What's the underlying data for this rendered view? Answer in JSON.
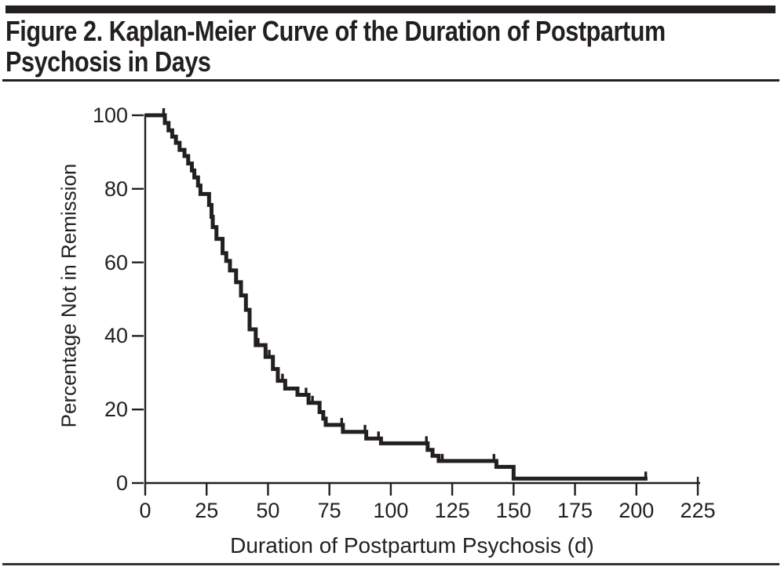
{
  "figure": {
    "title": "Figure 2. Kaplan-Meier Curve of the Duration of Postpartum Psychosis in Days"
  },
  "colors": {
    "ink": "#231f20",
    "background": "#ffffff"
  },
  "chart_data": {
    "type": "line",
    "subtype": "kaplan-meier-step",
    "title": "Figure 2. Kaplan-Meier Curve of the Duration of Postpartum Psychosis in Days",
    "xlabel": "Duration of Postpartum Psychosis (d)",
    "ylabel": "Percentage Not in Remission",
    "xlim": [
      0,
      225
    ],
    "ylim": [
      0,
      100
    ],
    "x_ticks": [
      0,
      25,
      50,
      75,
      100,
      125,
      150,
      175,
      200,
      225
    ],
    "y_ticks": [
      0,
      20,
      40,
      60,
      80,
      100
    ],
    "grid": false,
    "legend": "none",
    "series": [
      {
        "name": "Percentage not in remission",
        "steps": [
          [
            0,
            100
          ],
          [
            8,
            97.9
          ],
          [
            9.5,
            95.9
          ],
          [
            11,
            94.2
          ],
          [
            12.5,
            92.5
          ],
          [
            14,
            90.6
          ],
          [
            16,
            88.9
          ],
          [
            17.5,
            86.9
          ],
          [
            19,
            85.0
          ],
          [
            20,
            83.1
          ],
          [
            21.5,
            80.9
          ],
          [
            22.5,
            78.6
          ],
          [
            26,
            75.6
          ],
          [
            27,
            72.4
          ],
          [
            27.5,
            69.6
          ],
          [
            29,
            66.4
          ],
          [
            31.5,
            62.5
          ],
          [
            33,
            60.4
          ],
          [
            34.5,
            57.8
          ],
          [
            37,
            54.6
          ],
          [
            39,
            51.0
          ],
          [
            41,
            47.1
          ],
          [
            42.5,
            41.8
          ],
          [
            45,
            37.5
          ],
          [
            49,
            34.3
          ],
          [
            52,
            31.0
          ],
          [
            54,
            27.8
          ],
          [
            57,
            25.7
          ],
          [
            62,
            24.0
          ],
          [
            66.5,
            21.8
          ],
          [
            71,
            19.3
          ],
          [
            72.5,
            17.5
          ],
          [
            73.5,
            15.8
          ],
          [
            80.5,
            13.9
          ],
          [
            90,
            12.1
          ],
          [
            96,
            10.8
          ],
          [
            115,
            9.0
          ],
          [
            117,
            7.4
          ],
          [
            119.5,
            6.0
          ],
          [
            143,
            4.4
          ],
          [
            150,
            1.2
          ]
        ],
        "end_time": 204.5,
        "censor_times": [
          7.5,
          46,
          50.5,
          55.9,
          65.5,
          68.1,
          80,
          89.5,
          95,
          114.5,
          121,
          142,
          203.8
        ]
      }
    ]
  }
}
